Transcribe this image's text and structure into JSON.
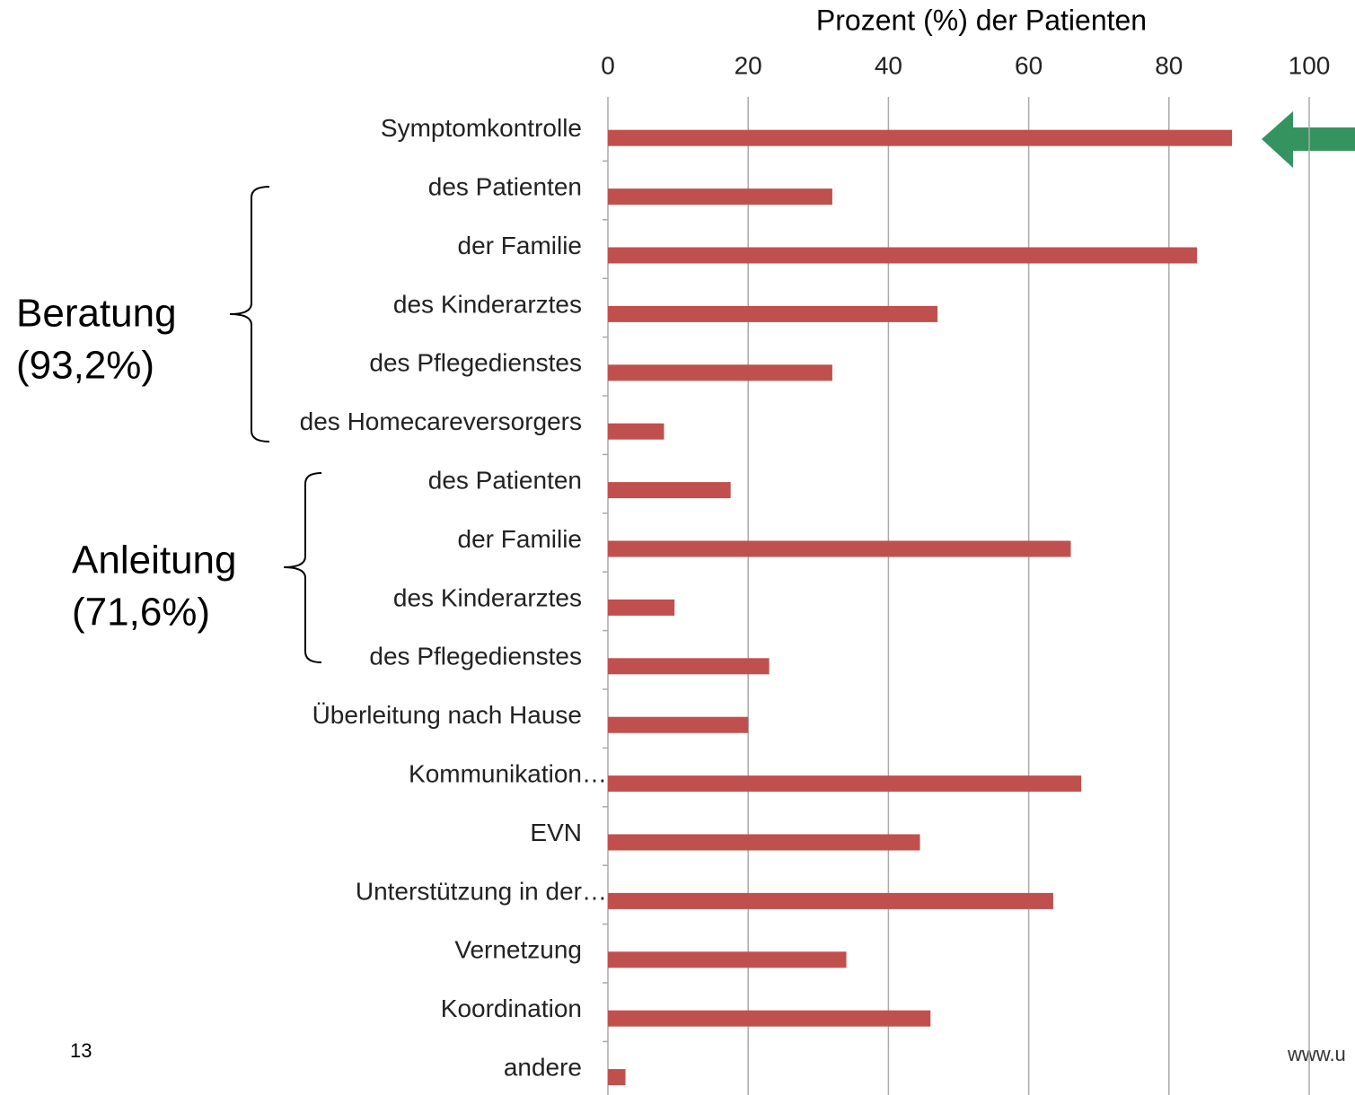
{
  "chart_data": {
    "type": "bar",
    "orientation": "horizontal",
    "xlabel": "Prozent (%) der Patienten",
    "categories": [
      "Symptomkontrolle",
      "des Patienten",
      "der Familie",
      "des Kinderarztes",
      "des Pflegedienstes",
      "des Homecareversorgers",
      "des Patienten",
      "der Familie",
      "des Kinderarztes",
      "des Pflegedienstes",
      "Überleitung nach Hause",
      "Kommunikation…",
      "EVN",
      "Unterstützung in der…",
      "Vernetzung",
      "Koordination",
      "andere"
    ],
    "values": [
      89,
      32,
      84,
      47,
      32,
      8,
      17.5,
      66,
      9.5,
      23,
      20,
      67.5,
      44.5,
      63.5,
      34,
      46,
      2.5
    ],
    "color": "#c0504d",
    "xlim": [
      0,
      100
    ],
    "xticks": [
      0,
      20,
      40,
      60,
      80,
      100
    ],
    "grid": true,
    "annotations": [
      "Beratung",
      "(93,2%)",
      "Anleitung",
      "(71,6%)"
    ]
  },
  "page_number": "13",
  "footer": "www.u"
}
